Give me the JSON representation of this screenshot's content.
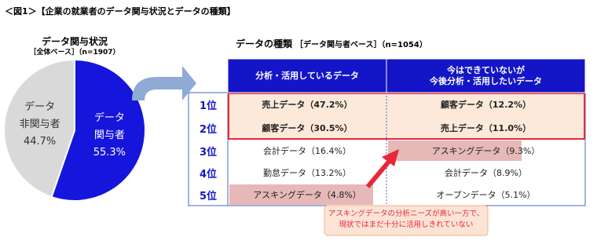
{
  "title": "＜図1＞【企業の就業者のデータ関与状況とデータの種類】",
  "chart_data": {
    "type": "pie",
    "title": "データ関与状況",
    "subtitle": "［全体ベース］（n=1907）",
    "categories": [
      "データ\n関与者",
      "データ\n非関与者"
    ],
    "values": [
      55.3,
      44.7
    ],
    "value_labels": [
      "55.3%",
      "44.7%"
    ],
    "colors": [
      "#1515dc",
      "#d9d9d9"
    ]
  },
  "table": {
    "title": "データの種類",
    "subtitle": "［データ関与者ベース］（n=1054）",
    "headers": [
      "分析・活用しているデータ",
      "今はできていないが\n今後分析・活用したいデータ"
    ],
    "rows": [
      {
        "rank": "1位",
        "cells": [
          "売上データ（47.2%）",
          "顧客データ（12.2%）"
        ]
      },
      {
        "rank": "2位",
        "cells": [
          "顧客データ（30.5%）",
          "売上データ（11.0%）"
        ]
      },
      {
        "rank": "3位",
        "cells": [
          "会計データ（16.4%）",
          "アスキングデータ（9.3%）"
        ]
      },
      {
        "rank": "4位",
        "cells": [
          "勤怠データ（13.2%）",
          "会計データ（8.9%）"
        ]
      },
      {
        "rank": "5位",
        "cells": [
          "アスキングデータ（4.8%）",
          "オープンデータ（5.1%）"
        ]
      }
    ]
  },
  "note": {
    "lines": [
      "アスキングデータの分析ニーズが高い一方で、",
      "現状ではまだ十分に活用しきれていない"
    ]
  }
}
